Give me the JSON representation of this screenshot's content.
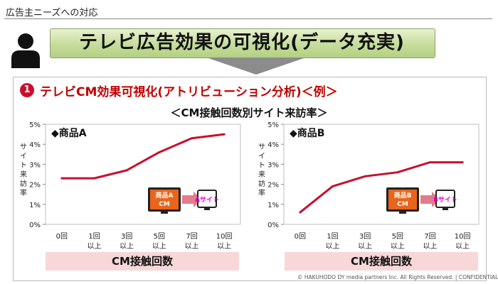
{
  "header": {
    "title": "広告主ニーズへの対応"
  },
  "banner": {
    "title": "テレビ広告効果の可視化(データ充実)"
  },
  "section": {
    "number": "1",
    "title": "テレビCM効果可視化(アトリビューション分析)＜例＞"
  },
  "chart_title": "＜CM接触回数別サイト来訪率＞",
  "colors": {
    "line": "#c8102e",
    "banner": "#c6dc9b",
    "xband": "#f7d7d7",
    "tv": "#e9651c",
    "arrow": "#e37c8c",
    "site_label": "#e000c8"
  },
  "chart_data": [
    {
      "type": "line",
      "title": "◆商品A",
      "ylabel": "サイト来訪率",
      "xlabel": "CM接触回数",
      "categories": [
        [
          "0回"
        ],
        [
          "1回",
          "以上"
        ],
        [
          "3回",
          "以上"
        ],
        [
          "5回",
          "以上"
        ],
        [
          "7回",
          "以上"
        ],
        [
          "10回",
          "以上"
        ]
      ],
      "values": [
        2.3,
        2.3,
        2.7,
        3.6,
        4.3,
        4.5
      ],
      "yticks": [
        "0%",
        "1%",
        "2%",
        "3%",
        "4%",
        "5%"
      ],
      "ylim": [
        0,
        5
      ],
      "grid": false,
      "tv_label": [
        "商品A",
        "CM"
      ],
      "site_label": "Aサイト"
    },
    {
      "type": "line",
      "title": "◆商品B",
      "ylabel": "サイト来訪率",
      "xlabel": "CM接触回数",
      "categories": [
        [
          "0回"
        ],
        [
          "1回",
          "以上"
        ],
        [
          "3回",
          "以上"
        ],
        [
          "5回",
          "以上"
        ],
        [
          "7回",
          "以上"
        ],
        [
          "10回",
          "以上"
        ]
      ],
      "values": [
        0.6,
        1.9,
        2.4,
        2.6,
        3.1,
        3.1
      ],
      "yticks": [
        "0%",
        "1%",
        "2%",
        "3%",
        "4%",
        "5%"
      ],
      "ylim": [
        0,
        5
      ],
      "grid": false,
      "tv_label": [
        "商品B",
        "CM"
      ],
      "site_label": "Bサイト"
    }
  ],
  "copyright": "© HAKUHODO DY media partners Inc. All Rights Reserved. | CONFIDENTIAL"
}
